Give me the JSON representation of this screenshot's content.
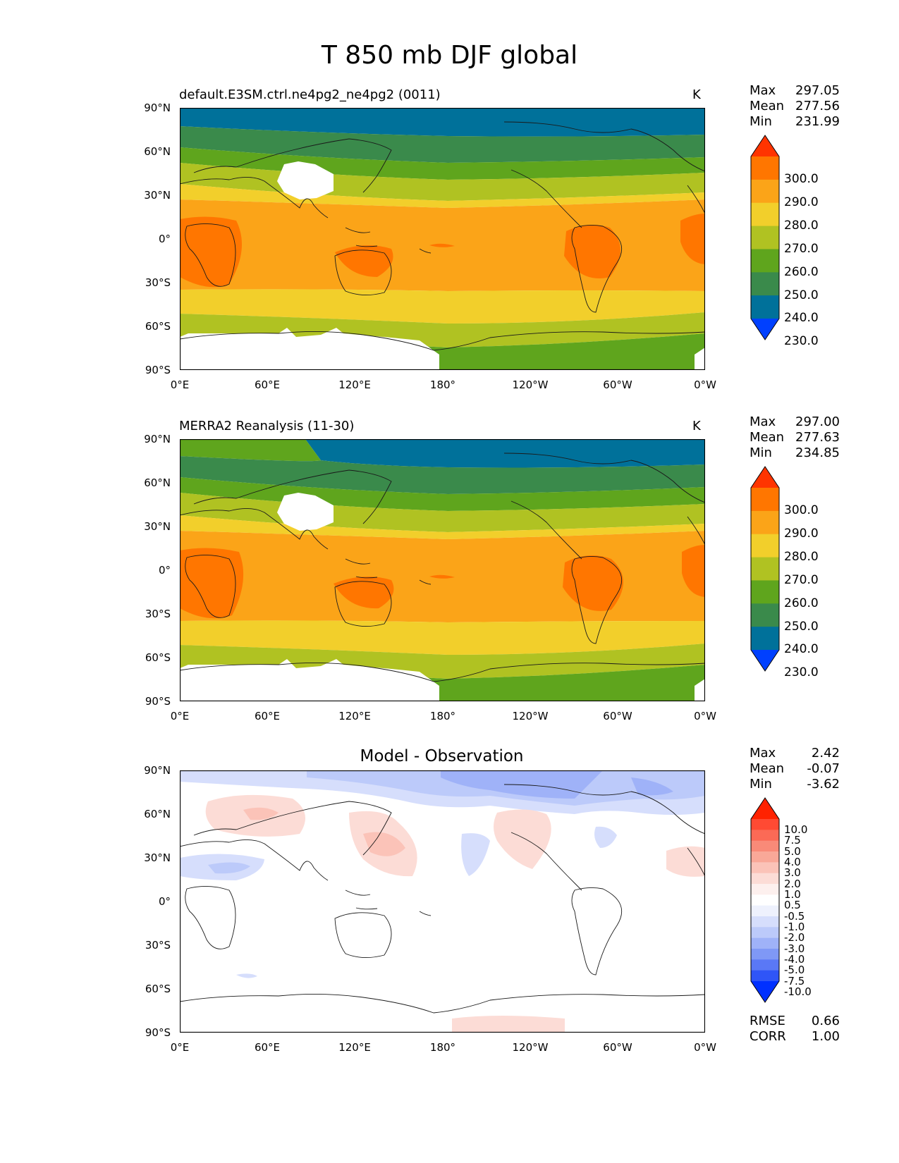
{
  "figure": {
    "title": "T 850 mb DJF global"
  },
  "axes": {
    "lat_ticks": [
      "90°N",
      "60°N",
      "30°N",
      "0°",
      "30°S",
      "60°S",
      "90°S"
    ],
    "lon_ticks": [
      "0°E",
      "60°E",
      "120°E",
      "180°",
      "120°W",
      "60°W",
      "0°W"
    ]
  },
  "panels": [
    {
      "title": "default.E3SM.ctrl.ne4pg2_ne4pg2 (0011)",
      "units": "K",
      "stats": {
        "max_label": "Max",
        "max": "297.05",
        "mean_label": "Mean",
        "mean": "277.56",
        "min_label": "Min",
        "min": "231.99"
      },
      "colorbar": {
        "labels": [
          "300.0",
          "290.0",
          "280.0",
          "270.0",
          "260.0",
          "250.0",
          "240.0",
          "230.0"
        ],
        "colors": [
          "#ff3400",
          "#ff7600",
          "#fba418",
          "#f2cf2b",
          "#b0c222",
          "#5fa51d",
          "#3a8a4b",
          "#00719a",
          "#0040ff"
        ]
      }
    },
    {
      "title": "MERRA2 Reanalysis (11-30)",
      "units": "K",
      "stats": {
        "max_label": "Max",
        "max": "297.00",
        "mean_label": "Mean",
        "mean": "277.63",
        "min_label": "Min",
        "min": "234.85"
      },
      "colorbar": {
        "labels": [
          "300.0",
          "290.0",
          "280.0",
          "270.0",
          "260.0",
          "250.0",
          "240.0",
          "230.0"
        ],
        "colors": [
          "#ff3400",
          "#ff7600",
          "#fba418",
          "#f2cf2b",
          "#b0c222",
          "#5fa51d",
          "#3a8a4b",
          "#00719a",
          "#0040ff"
        ]
      }
    },
    {
      "title": "Model - Observation",
      "stats": {
        "max_label": "Max",
        "max": "2.42",
        "mean_label": "Mean",
        "mean": "-0.07",
        "min_label": "Min",
        "min": "-3.62"
      },
      "colorbar": {
        "labels": [
          "10.0",
          "7.5",
          "5.0",
          "4.0",
          "3.0",
          "2.0",
          "1.0",
          "0.5",
          "-0.5",
          "-1.0",
          "-2.0",
          "-3.0",
          "-4.0",
          "-5.0",
          "-7.5",
          "-10.0"
        ],
        "colors": [
          "#ff2200",
          "#ff4a33",
          "#fb6a56",
          "#f98a78",
          "#f9a898",
          "#fbc3b8",
          "#fcdcd6",
          "#fdf0ee",
          "#ffffff",
          "#eef1fd",
          "#d6defc",
          "#bccafa",
          "#9fb2f8",
          "#7f98f6",
          "#5a78f6",
          "#2f55f7",
          "#0030ff"
        ]
      },
      "metrics": {
        "rmse_label": "RMSE",
        "rmse": "0.66",
        "corr_label": "CORR",
        "corr": "1.00"
      }
    }
  ]
}
